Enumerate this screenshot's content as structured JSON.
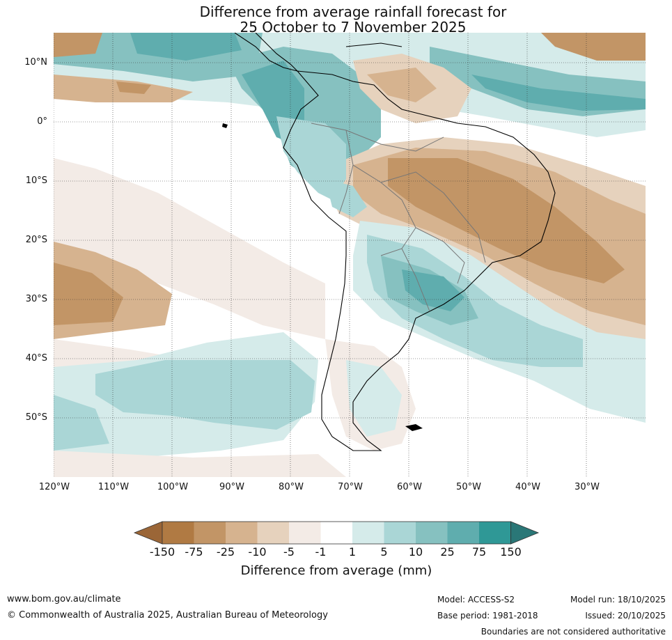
{
  "title": {
    "line1": "Difference from average rainfall forecast for",
    "line2": "25 October to 7 November 2025"
  },
  "axes": {
    "latitude_labels": [
      "10°N",
      "0°",
      "10°S",
      "20°S",
      "30°S",
      "40°S",
      "50°S"
    ],
    "longitude_labels": [
      "120°W",
      "110°W",
      "100°W",
      "90°W",
      "80°W",
      "70°W",
      "60°W",
      "50°W",
      "40°W",
      "30°W"
    ]
  },
  "legend": {
    "title": "Difference from average (mm)",
    "tick_labels": [
      "-150",
      "-75",
      "-25",
      "-10",
      "-5",
      "-1",
      "1",
      "5",
      "10",
      "25",
      "75",
      "150"
    ],
    "colors": {
      "below_min": "#9b6637",
      "m150_m75": "#b07a43",
      "m75_m25": "#c29566",
      "m25_m10": "#d6b38f",
      "m10_m5": "#e6d2bd",
      "m5_m1": "#f3ebe6",
      "m1_p1": "#ffffff",
      "p1_p5": "#d5ebea",
      "p5_p10": "#aad6d6",
      "p10_p25": "#86c1c0",
      "p25_p75": "#5fadae",
      "p75_p150": "#2f9896",
      "above_max": "#2a7777"
    }
  },
  "footer": {
    "website": "www.bom.gov.au/climate",
    "copyright": "© Commonwealth of Australia 2025, Australian Bureau of Meteorology",
    "model": "Model: ACCESS-S2",
    "base_period": "Base period: 1981-2018",
    "model_run": "Model run: 18/10/2025",
    "issued": "Issued: 20/10/2025",
    "disclaimer": "Boundaries are not considered authoritative"
  }
}
